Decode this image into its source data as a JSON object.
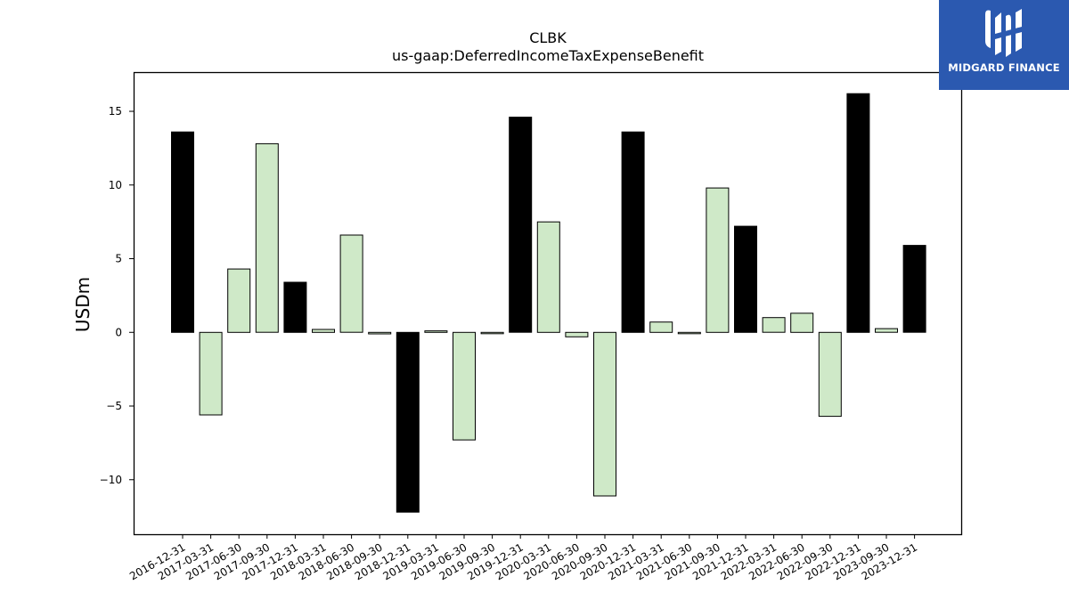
{
  "chart_data": {
    "type": "bar",
    "title": "CLBK",
    "subtitle": "us-gaap:DeferredIncomeTaxExpenseBenefit",
    "xlabel": "",
    "ylabel": "USDm",
    "ylim": [
      -13.7,
      17.6
    ],
    "yticks": [
      -10,
      -5,
      0,
      5,
      10,
      15
    ],
    "ytick_labels": [
      "−10",
      "−5",
      "0",
      "5",
      "10",
      "15"
    ],
    "grid": false,
    "categories": [
      "2016-12-31",
      "2017-03-31",
      "2017-06-30",
      "2017-09-30",
      "2017-12-31",
      "2018-03-31",
      "2018-06-30",
      "2018-09-30",
      "2018-12-31",
      "2019-03-31",
      "2019-06-30",
      "2019-09-30",
      "2019-12-31",
      "2020-03-31",
      "2020-06-30",
      "2020-09-30",
      "2020-12-31",
      "2021-03-31",
      "2021-06-30",
      "2021-09-30",
      "2021-12-31",
      "2022-03-31",
      "2022-06-30",
      "2022-09-30",
      "2022-12-31",
      "2023-09-30",
      "2023-12-31"
    ],
    "values": [
      13.6,
      -5.6,
      4.3,
      12.8,
      3.4,
      0.2,
      6.6,
      -0.1,
      -12.2,
      0.1,
      -7.3,
      0.0,
      14.6,
      7.5,
      -0.3,
      -11.1,
      13.6,
      0.7,
      0.0,
      9.8,
      7.2,
      1.0,
      1.3,
      -5.7,
      16.2,
      0.25,
      5.9
    ],
    "highlight": [
      true,
      false,
      false,
      false,
      true,
      false,
      false,
      false,
      true,
      false,
      false,
      false,
      true,
      false,
      false,
      false,
      true,
      false,
      false,
      false,
      true,
      false,
      false,
      false,
      true,
      false,
      true
    ],
    "colors": {
      "highlight": "#000000",
      "normal": "#cfe9c8",
      "edge": "#000000"
    }
  },
  "logo": {
    "text": "MIDGARD FINANCE",
    "color": "#2b59b0"
  }
}
